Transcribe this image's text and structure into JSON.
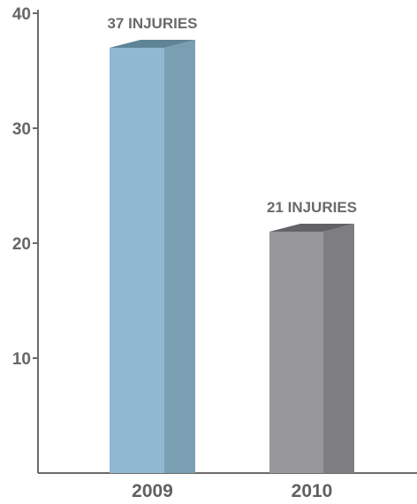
{
  "chart_data": {
    "type": "bar",
    "title": "",
    "xlabel": "",
    "ylabel": "",
    "categories": [
      "2009",
      "2010"
    ],
    "values": [
      37,
      21
    ],
    "data_labels": [
      "37 INJURIES",
      "21 INJURIES"
    ],
    "ylim": [
      0,
      40
    ],
    "y_ticks": [
      10,
      20,
      30,
      40
    ],
    "grid": false,
    "style": "3d-column",
    "colors": {
      "bars": [
        {
          "front": "#90b8d0",
          "side": "#7a9eb2",
          "top": "#5e8496"
        },
        {
          "front": "#98979c",
          "side": "#7e7d82",
          "top": "#636267"
        }
      ],
      "axis": "#6b6b6b",
      "text": "#666666"
    }
  }
}
